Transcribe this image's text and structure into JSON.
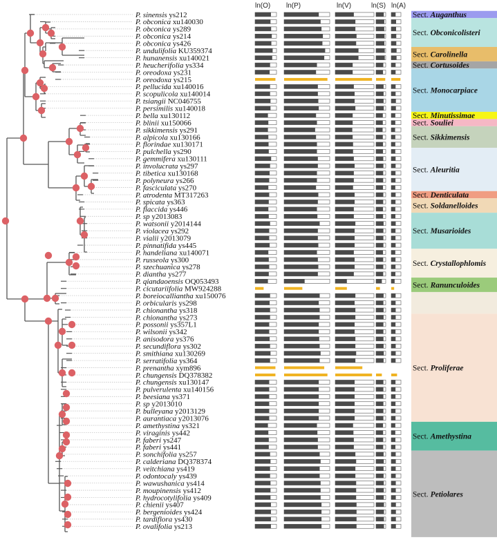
{
  "headers": [
    "ln(O)",
    "ln(P)",
    "ln(V)",
    "ln(S)",
    "ln(A)"
  ],
  "colors": {
    "branch": "#555555",
    "node": "#dc6165",
    "bar_dark": "#4a4a4a",
    "bar_light": "#ffffff",
    "bar_border": "#555555",
    "highlight": "#f0b323",
    "leader": "#c6c6c6"
  },
  "taxa": [
    {
      "genus": "P.",
      "species": "sinensis",
      "code": "ys212",
      "bars": [
        0.74,
        0.76,
        0.48,
        0.8,
        0.45
      ]
    },
    {
      "genus": "P.",
      "species": "obconica",
      "code": "xu140030",
      "bars": [
        0.72,
        0.8,
        0.52,
        0.85,
        0.5
      ]
    },
    {
      "genus": "P.",
      "species": "obconica",
      "code": "ys289",
      "bars": [
        0.75,
        0.82,
        0.52,
        0.85,
        0.5
      ]
    },
    {
      "genus": "P.",
      "species": "obconica",
      "code": "ys214",
      "bars": [
        0.78,
        0.85,
        0.55,
        0.88,
        0.52
      ]
    },
    {
      "genus": "P.",
      "species": "obconica",
      "code": "ys426",
      "bars": [
        0.76,
        0.84,
        0.54,
        0.86,
        0.52
      ]
    },
    {
      "genus": "P.",
      "species": "undulifolia",
      "code": "KU359374",
      "bars": [
        0.82,
        0.9,
        0.6,
        0.9,
        0.55
      ]
    },
    {
      "genus": "P.",
      "species": "hunanensis",
      "code": "xu140021",
      "bars": [
        0.8,
        0.88,
        0.6,
        0.9,
        0.55
      ]
    },
    {
      "genus": "P.",
      "species": "heucherifolia",
      "code": "ys334",
      "bars": [
        0.7,
        0.72,
        0.45,
        0.75,
        0.45
      ]
    },
    {
      "genus": "P.",
      "species": "oreodoxa",
      "code": "ys231",
      "bars": [
        0.68,
        0.7,
        0.45,
        0.72,
        0.45
      ]
    },
    {
      "genus": "P.",
      "species": "oreodoxa",
      "code": "ys215",
      "bars": [
        0.95,
        0.95,
        0.95,
        0.95,
        0.95
      ],
      "highlight": true
    },
    {
      "genus": "P.",
      "species": "pellucida",
      "code": "xu140016",
      "bars": [
        0.7,
        0.74,
        0.48,
        0.78,
        0.45
      ]
    },
    {
      "genus": "P.",
      "species": "scopulicola",
      "code": "xu140014",
      "bars": [
        0.7,
        0.74,
        0.5,
        0.78,
        0.45
      ]
    },
    {
      "genus": "P.",
      "species": "tsiangii",
      "code": "NC046755",
      "bars": [
        0.72,
        0.75,
        0.5,
        0.78,
        0.48
      ]
    },
    {
      "genus": "P.",
      "species": "persimilis",
      "code": "xu140018",
      "bars": [
        0.72,
        0.76,
        0.52,
        0.8,
        0.48
      ]
    },
    {
      "genus": "P.",
      "species": "bella",
      "code": "xu130112",
      "bars": [
        0.6,
        0.7,
        0.45,
        0.7,
        0.42
      ]
    },
    {
      "genus": "P.",
      "species": "blinii",
      "code": "xu150066",
      "bars": [
        0.62,
        0.72,
        0.45,
        0.7,
        0.42
      ]
    },
    {
      "genus": "P.",
      "species": "sikkimensis",
      "code": "ys291",
      "bars": [
        0.6,
        0.68,
        0.44,
        0.68,
        0.4
      ]
    },
    {
      "genus": "P.",
      "species": "alpicola",
      "code": "xu130166",
      "bars": [
        0.62,
        0.7,
        0.45,
        0.7,
        0.42
      ]
    },
    {
      "genus": "P.",
      "species": "florindae",
      "code": "xu130171",
      "bars": [
        0.63,
        0.72,
        0.46,
        0.72,
        0.42
      ]
    },
    {
      "genus": "P.",
      "species": "pulchella",
      "code": "ys290",
      "bars": [
        0.64,
        0.72,
        0.46,
        0.72,
        0.42
      ]
    },
    {
      "genus": "P.",
      "species": "gemmifera",
      "code": "xu130111",
      "bars": [
        0.75,
        0.74,
        0.48,
        0.75,
        0.45
      ]
    },
    {
      "genus": "P.",
      "species": "involucrata",
      "code": "ys297",
      "bars": [
        0.7,
        0.74,
        0.5,
        0.76,
        0.45
      ]
    },
    {
      "genus": "P.",
      "species": "tibetica",
      "code": "xu130168",
      "bars": [
        0.68,
        0.72,
        0.48,
        0.74,
        0.44
      ]
    },
    {
      "genus": "P.",
      "species": "polyneura",
      "code": "ys266",
      "bars": [
        0.66,
        0.72,
        0.48,
        0.74,
        0.44
      ]
    },
    {
      "genus": "P.",
      "species": "fasciculata",
      "code": "ys270",
      "bars": [
        0.62,
        0.7,
        0.46,
        0.72,
        0.42
      ]
    },
    {
      "genus": "P.",
      "species": "atrodenta",
      "code": "MT317263",
      "bars": [
        0.66,
        0.75,
        0.5,
        0.75,
        0.45
      ]
    },
    {
      "genus": "P.",
      "species": "spicata",
      "code": "ys363",
      "bars": [
        0.64,
        0.74,
        0.5,
        0.74,
        0.44
      ]
    },
    {
      "genus": "P.",
      "species": "flaccida",
      "code": "ys446",
      "bars": [
        0.62,
        0.72,
        0.48,
        0.72,
        0.42
      ]
    },
    {
      "genus": "P.",
      "species": "sp",
      "code": "y2013083",
      "bars": [
        0.64,
        0.73,
        0.48,
        0.73,
        0.43
      ]
    },
    {
      "genus": "P.",
      "species": "watsonii",
      "code": "y2014144",
      "bars": [
        0.7,
        0.78,
        0.52,
        0.78,
        0.46
      ]
    },
    {
      "genus": "P.",
      "species": "violacea",
      "code": "ys292",
      "bars": [
        0.66,
        0.74,
        0.5,
        0.76,
        0.44
      ]
    },
    {
      "genus": "P.",
      "species": "vialii",
      "code": "y2013079",
      "bars": [
        0.66,
        0.74,
        0.5,
        0.76,
        0.44
      ]
    },
    {
      "genus": "P.",
      "species": "pinnatifida",
      "code": "ys445",
      "bars": [
        0.68,
        0.75,
        0.5,
        0.76,
        0.45
      ]
    },
    {
      "genus": "P.",
      "species": "handeliana",
      "code": "xu140071",
      "bars": [
        0.62,
        0.72,
        0.48,
        0.72,
        0.42
      ]
    },
    {
      "genus": "P.",
      "species": "russeola",
      "code": "ys300",
      "bars": [
        0.64,
        0.74,
        0.5,
        0.74,
        0.44
      ]
    },
    {
      "genus": "P.",
      "species": "szechuanica",
      "code": "ys278",
      "bars": [
        0.66,
        0.75,
        0.5,
        0.75,
        0.44
      ]
    },
    {
      "genus": "P.",
      "species": "diantha",
      "code": "ys277",
      "bars": [
        0.64,
        0.74,
        0.48,
        0.74,
        0.43
      ]
    },
    {
      "genus": "P.",
      "species": "qiandaoensis",
      "code": "OQ053493",
      "bars": [
        0.6,
        0.45,
        0.3,
        0.6,
        0.35
      ]
    },
    {
      "genus": "P.",
      "species": "cicutariifolia",
      "code": "MW924288",
      "bars": [
        0.4,
        0.4,
        0.3,
        0.4,
        0.3
      ],
      "highlight": true
    },
    {
      "genus": "P.",
      "species": "boreiocalliantha",
      "code": "xu150076",
      "bars": [
        0.7,
        0.78,
        0.52,
        0.78,
        0.45
      ]
    },
    {
      "genus": "P.",
      "species": "orbicularis",
      "code": "ys298",
      "bars": [
        0.68,
        0.76,
        0.5,
        0.76,
        0.45
      ]
    },
    {
      "genus": "P.",
      "species": "chionantha",
      "code": "ys318",
      "bars": [
        0.7,
        0.78,
        0.52,
        0.78,
        0.46
      ]
    },
    {
      "genus": "P.",
      "species": "chionantha",
      "code": "ys273",
      "bars": [
        0.7,
        0.78,
        0.52,
        0.78,
        0.46
      ]
    },
    {
      "genus": "P.",
      "species": "possonii",
      "code": "ys357L1",
      "bars": [
        0.66,
        0.76,
        0.5,
        0.76,
        0.44
      ]
    },
    {
      "genus": "P.",
      "species": "wilsonii",
      "code": "ys342",
      "bars": [
        0.66,
        0.76,
        0.5,
        0.76,
        0.44
      ]
    },
    {
      "genus": "P.",
      "species": "anisodora",
      "code": "ys376",
      "bars": [
        0.68,
        0.77,
        0.52,
        0.77,
        0.45
      ]
    },
    {
      "genus": "P.",
      "species": "secundiflora",
      "code": "ys302",
      "bars": [
        0.7,
        0.78,
        0.52,
        0.78,
        0.46
      ]
    },
    {
      "genus": "P.",
      "species": "smithiana",
      "code": "xu130269",
      "bars": [
        0.72,
        0.8,
        0.54,
        0.8,
        0.46
      ]
    },
    {
      "genus": "P.",
      "species": "serratifolia",
      "code": "ys364",
      "bars": [
        0.7,
        0.78,
        0.52,
        0.78,
        0.45
      ]
    },
    {
      "genus": "P.",
      "species": "prenantha",
      "code": "xym896",
      "bars": [
        0.95,
        0.88,
        0.7,
        0.0,
        0.0
      ],
      "highlight": true
    },
    {
      "genus": "P.",
      "species": "chungensis",
      "code": "DQ378382",
      "bars": [
        0.95,
        0.95,
        0.95,
        0.6,
        0.6
      ],
      "highlight": true
    },
    {
      "genus": "P.",
      "species": "chungensis",
      "code": "xu130147",
      "bars": [
        0.66,
        0.76,
        0.5,
        0.76,
        0.44
      ]
    },
    {
      "genus": "P.",
      "species": "pulverulenta",
      "code": "xu140156",
      "bars": [
        0.66,
        0.76,
        0.5,
        0.76,
        0.44
      ]
    },
    {
      "genus": "P.",
      "species": "beesiana",
      "code": "ys371",
      "bars": [
        0.66,
        0.76,
        0.5,
        0.76,
        0.44
      ]
    },
    {
      "genus": "P.",
      "species": "sp",
      "code": "y2013010",
      "bars": [
        0.66,
        0.76,
        0.5,
        0.76,
        0.44
      ]
    },
    {
      "genus": "P.",
      "species": "bulleyana",
      "code": "y2013129",
      "bars": [
        0.66,
        0.76,
        0.5,
        0.76,
        0.44
      ]
    },
    {
      "genus": "P.",
      "species": "aurantiaca",
      "code": "y2013076",
      "bars": [
        0.66,
        0.76,
        0.5,
        0.76,
        0.44
      ]
    },
    {
      "genus": "P.",
      "species": "amethystina",
      "code": "ys321",
      "bars": [
        0.6,
        0.72,
        0.46,
        0.72,
        0.42
      ]
    },
    {
      "genus": "P.",
      "species": "viraginis",
      "code": "ys442",
      "bars": [
        0.62,
        0.73,
        0.47,
        0.73,
        0.42
      ]
    },
    {
      "genus": "P.",
      "species": "faberi",
      "code": "ys247",
      "bars": [
        0.64,
        0.74,
        0.48,
        0.74,
        0.43
      ]
    },
    {
      "genus": "P.",
      "species": "faberi",
      "code": "ys441",
      "bars": [
        0.64,
        0.74,
        0.48,
        0.74,
        0.43
      ]
    },
    {
      "genus": "P.",
      "species": "sonchifolia",
      "code": "ys257",
      "bars": [
        0.7,
        0.78,
        0.52,
        0.78,
        0.46
      ]
    },
    {
      "genus": "P.",
      "species": "calderiana",
      "code": "DQ378374",
      "bars": [
        0.72,
        0.8,
        0.54,
        0.8,
        0.47
      ]
    },
    {
      "genus": "P.",
      "species": "veitchiana",
      "code": "ys419",
      "bars": [
        0.7,
        0.78,
        0.52,
        0.78,
        0.46
      ]
    },
    {
      "genus": "P.",
      "species": "odontocaly",
      "code": "ys439",
      "bars": [
        0.7,
        0.78,
        0.52,
        0.78,
        0.46
      ]
    },
    {
      "genus": "P.",
      "species": "wawushanica",
      "code": "ys414",
      "bars": [
        0.72,
        0.8,
        0.54,
        0.8,
        0.47
      ]
    },
    {
      "genus": "P.",
      "species": "moupinensis",
      "code": "ys412",
      "bars": [
        0.72,
        0.8,
        0.54,
        0.8,
        0.47
      ]
    },
    {
      "genus": "P.",
      "species": "hydrocotylifolia",
      "code": "ys409",
      "bars": [
        0.72,
        0.8,
        0.54,
        0.8,
        0.47
      ]
    },
    {
      "genus": "P.",
      "species": "chienii",
      "code": "ys407",
      "bars": [
        0.74,
        0.82,
        0.55,
        0.82,
        0.48
      ]
    },
    {
      "genus": "P.",
      "species": "bergenioides",
      "code": "ys424",
      "bars": [
        0.74,
        0.82,
        0.55,
        0.82,
        0.48
      ]
    },
    {
      "genus": "P.",
      "species": "tardiflora",
      "code": "ys430",
      "bars": [
        0.74,
        0.82,
        0.55,
        0.82,
        0.48
      ]
    },
    {
      "genus": "P.",
      "species": "ovalifolia",
      "code": "ys213",
      "bars": [
        0.74,
        0.82,
        0.55,
        0.82,
        0.48
      ]
    }
  ],
  "sections": [
    {
      "prefix": "Sect.",
      "name": "Auganthus",
      "color": "#9b9bef",
      "first": 0,
      "last": 0
    },
    {
      "prefix": "Sect.",
      "name": "Obconicolisteri",
      "color": "#b9e4e0",
      "first": 1,
      "last": 4
    },
    {
      "prefix": "Sect.",
      "name": "Carolinella",
      "color": "#e8bd6a",
      "first": 5,
      "last": 6
    },
    {
      "prefix": "Sect.",
      "name": "Cortusoides",
      "color": "#a5a5a5",
      "first": 7,
      "last": 7
    },
    {
      "prefix": "Sect.",
      "name": "Monocarpiace",
      "color": "#a9d6e6",
      "first": 8,
      "last": 13
    },
    {
      "prefix": "Sect.",
      "name": "Minutissimae",
      "color": "#f6f617",
      "first": 14,
      "last": 14
    },
    {
      "prefix": "Sect.",
      "name": "Souliei",
      "color": "#f6b8c5",
      "first": 15,
      "last": 15
    },
    {
      "prefix": "Sect.",
      "name": "Sikkimensis",
      "color": "#c5d3bc",
      "first": 16,
      "last": 18
    },
    {
      "prefix": "Sect.",
      "name": "Aleuritia",
      "color": "#e3edf5",
      "first": 19,
      "last": 24
    },
    {
      "prefix": "Sect.",
      "name": "Denticulata",
      "color": "#f09d82",
      "first": 25,
      "last": 25
    },
    {
      "prefix": "Sect.",
      "name": "Soldanelloides",
      "color": "#f1d9b6",
      "first": 26,
      "last": 27
    },
    {
      "prefix": "Sect.",
      "name": "Musarioides",
      "color": "#a8ddd7",
      "first": 28,
      "last": 32
    },
    {
      "prefix": "Sect.",
      "name": "Crystallophlomis",
      "color": "#f6efdf",
      "first": 33,
      "last": 36
    },
    {
      "prefix": "Sect.",
      "name": "Ranunculoides",
      "color": "#9bcb7b",
      "first": 37,
      "last": 38
    },
    {
      "prefix": "Sect.",
      "name": "",
      "color": "#f2ebde",
      "first": 39,
      "last": 41
    },
    {
      "prefix": "Sect.",
      "name": "Proliferae",
      "color": "#f8e2d3",
      "first": 42,
      "last": 56
    },
    {
      "prefix": "Sect.",
      "name": "Amethystina",
      "color": "#56bca0",
      "first": 57,
      "last": 60
    },
    {
      "prefix": "Sect.",
      "name": "Petiolares",
      "color": "#bdbdbd",
      "first": 61,
      "last": 72
    }
  ],
  "tree": {
    "leaves": [
      {
        "x": 50,
        "node": false
      },
      {
        "x": 66,
        "node": false
      },
      {
        "x": 73,
        "node": false
      },
      {
        "x": 80,
        "node": false
      },
      {
        "x": 80,
        "node": false
      },
      {
        "x": 122,
        "node": false
      },
      {
        "x": 122,
        "node": false
      },
      {
        "x": 92,
        "node": false
      },
      {
        "x": 88,
        "node": false
      },
      {
        "x": 88,
        "node": false
      },
      {
        "x": 66,
        "node": false
      },
      {
        "x": 66,
        "node": false
      },
      {
        "x": 66,
        "node": false
      },
      {
        "x": 66,
        "node": false
      },
      {
        "x": 124,
        "node": false
      },
      {
        "x": 124,
        "node": false
      },
      {
        "x": 124,
        "node": false
      },
      {
        "x": 130,
        "node": false
      },
      {
        "x": 130,
        "node": false
      },
      {
        "x": 122,
        "node": false
      },
      {
        "x": 136,
        "node": false
      },
      {
        "x": 136,
        "node": false
      },
      {
        "x": 142,
        "node": false
      },
      {
        "x": 142,
        "node": false
      },
      {
        "x": 136,
        "node": false
      },
      {
        "x": 120,
        "node": false
      },
      {
        "x": 122,
        "node": false
      },
      {
        "x": 122,
        "node": false
      },
      {
        "x": 124,
        "node": false
      },
      {
        "x": 126,
        "node": false
      },
      {
        "x": 126,
        "node": false
      },
      {
        "x": 126,
        "node": false
      },
      {
        "x": 120,
        "node": false
      },
      {
        "x": 108,
        "node": false
      },
      {
        "x": 110,
        "node": false
      },
      {
        "x": 110,
        "node": false
      },
      {
        "x": 110,
        "node": false
      },
      {
        "x": 96,
        "node": false
      },
      {
        "x": 96,
        "node": false
      },
      {
        "x": 86,
        "node": false
      },
      {
        "x": 96,
        "node": false
      },
      {
        "x": 102,
        "node": false
      },
      {
        "x": 102,
        "node": false
      },
      {
        "x": 98,
        "node": false
      },
      {
        "x": 104,
        "node": false
      },
      {
        "x": 104,
        "node": false
      },
      {
        "x": 104,
        "node": false
      },
      {
        "x": 104,
        "node": false
      },
      {
        "x": 104,
        "node": false
      },
      {
        "x": 96,
        "node": false
      },
      {
        "x": 96,
        "node": false
      },
      {
        "x": 96,
        "node": false
      },
      {
        "x": 96,
        "node": false
      },
      {
        "x": 96,
        "node": false
      },
      {
        "x": 96,
        "node": false
      },
      {
        "x": 96,
        "node": false
      },
      {
        "x": 96,
        "node": false
      },
      {
        "x": 90,
        "node": false
      },
      {
        "x": 94,
        "node": false
      },
      {
        "x": 96,
        "node": false
      },
      {
        "x": 96,
        "node": false
      },
      {
        "x": 90,
        "node": false
      },
      {
        "x": 88,
        "node": false
      },
      {
        "x": 90,
        "node": false
      },
      {
        "x": 92,
        "node": false
      },
      {
        "x": 94,
        "node": false
      },
      {
        "x": 96,
        "node": false
      },
      {
        "x": 96,
        "node": false
      },
      {
        "x": 98,
        "node": false
      },
      {
        "x": 98,
        "node": false
      },
      {
        "x": 98,
        "node": false
      },
      {
        "x": 98,
        "node": false
      },
      {
        "x": 98,
        "node": false
      }
    ]
  }
}
